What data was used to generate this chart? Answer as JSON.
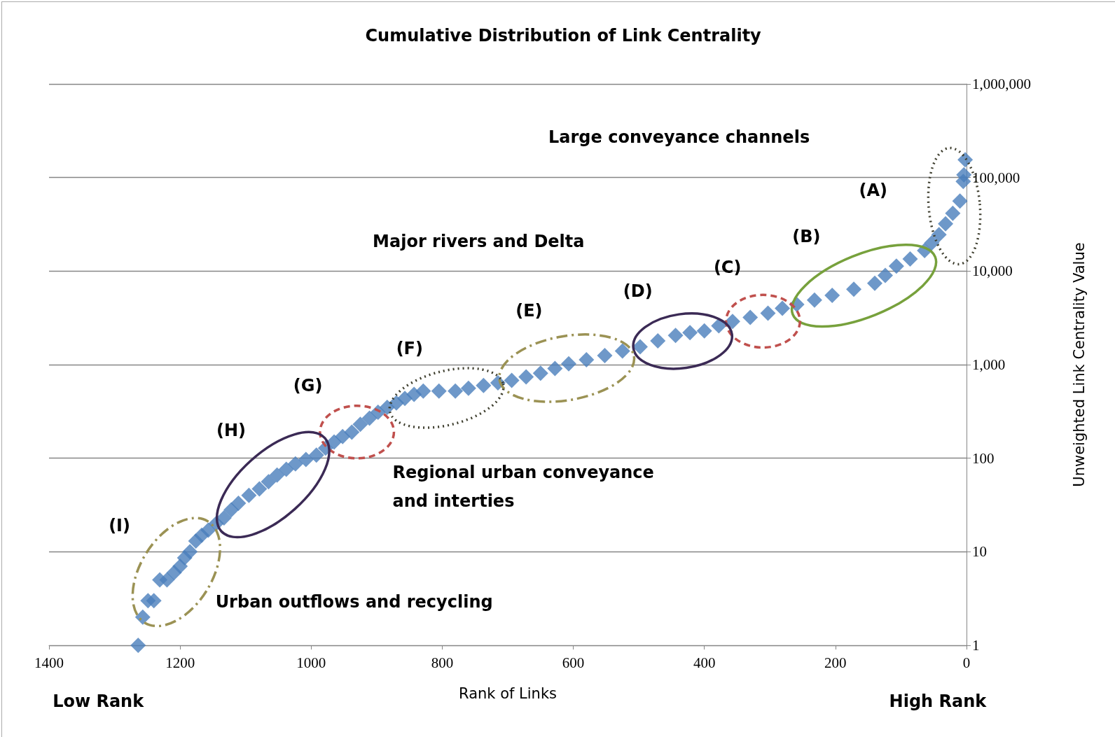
{
  "chart_data": {
    "type": "scatter",
    "title": "Cumulative Distribution of Link Centrality",
    "xlabel": "Rank of Links",
    "ylabel": "Unweighted Link Centrality Value",
    "annotations": [
      "Large conveyance channels",
      "(A)",
      "Major rivers and Delta",
      "(B)",
      "(C)",
      "(D)",
      "(E)",
      "(F)",
      "(G)",
      "(H)",
      "Regional urban conveyance and interties",
      "(I)",
      "Urban outflows and recycling",
      "Low Rank",
      "High Rank"
    ],
    "x": [
      1264,
      1257,
      1249,
      1240,
      1231,
      1220,
      1209,
      1200,
      1193,
      1185,
      1176,
      1167,
      1157,
      1145,
      1133,
      1122,
      1111,
      1095,
      1079,
      1065,
      1052,
      1038,
      1024,
      1008,
      992,
      978,
      965,
      952,
      938,
      925,
      911,
      898,
      884,
      870,
      857,
      843,
      829,
      805,
      780,
      760,
      737,
      715,
      694,
      672,
      650,
      628,
      607,
      580,
      552,
      525,
      498,
      471,
      444,
      422,
      400,
      378,
      357,
      330,
      303,
      281,
      259,
      232,
      205,
      172,
      140,
      124,
      107,
      86,
      64,
      53,
      42,
      32,
      21,
      10,
      5,
      4,
      2
    ],
    "series": [
      {
        "color": "#4a7ebb",
        "values": [
          1,
          2,
          3,
          3,
          5,
          5,
          6,
          7,
          8.6,
          10,
          13,
          15,
          17,
          20,
          23,
          28,
          33,
          40,
          47,
          56,
          66,
          76,
          87,
          97,
          108,
          128,
          149,
          170,
          190,
          230,
          268,
          310,
          349,
          390,
          436,
          480,
          523,
          523,
          523,
          560,
          600,
          640,
          680,
          740,
          810,
          910,
          1020,
          1130,
          1250,
          1400,
          1550,
          1800,
          2050,
          2200,
          2300,
          2600,
          2900,
          3200,
          3550,
          4000,
          4400,
          4900,
          5500,
          6400,
          7400,
          9000,
          11300,
          13500,
          16600,
          20000,
          24500,
          32000,
          41500,
          56000,
          91000,
          107000,
          155000
        ]
      }
    ],
    "xlim": [
      1400,
      0
    ],
    "xticks": [
      1400,
      1200,
      1000,
      800,
      600,
      400,
      200,
      0
    ],
    "ylim": [
      1,
      1000000
    ],
    "yticks": [
      1,
      10,
      100,
      {
        "value": 1000,
        "label": "1,000"
      },
      {
        "value": 10000,
        "label": "10,000"
      },
      {
        "value": 100000,
        "label": "100,000"
      },
      {
        "value": 1000000,
        "label": "1,000,000"
      }
    ],
    "log": "y",
    "grid": "y",
    "marker": "diamond"
  }
}
